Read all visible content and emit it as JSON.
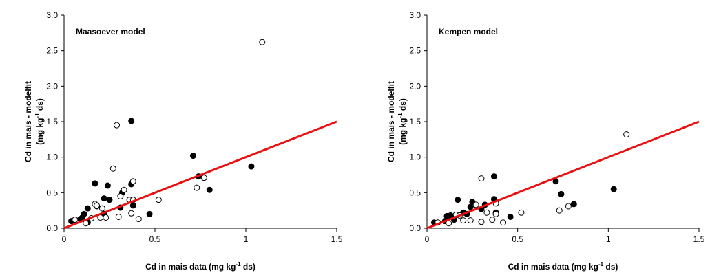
{
  "chart_data": [
    {
      "type": "scatter",
      "title": "Maasoever model",
      "xlabel": [
        "Cd in mais data (mg kg",
        "-1",
        " ds)"
      ],
      "ylabel": {
        "line1": "Cd in mais - modelfit",
        "line2": [
          "(mg kg",
          "-1",
          " ds)"
        ]
      },
      "xlim": [
        0,
        1.5
      ],
      "xticks": [
        0,
        0.5,
        1,
        1.5
      ],
      "ylim": [
        0,
        3
      ],
      "yticks": [
        {
          "value": 0,
          "label": "0.0"
        },
        0.5,
        {
          "value": 1,
          "label": "1.0"
        },
        1.5,
        {
          "value": 2,
          "label": "2.0"
        },
        2.5,
        {
          "value": 3,
          "label": "3.0"
        }
      ],
      "series": [
        {
          "fill": "#000000",
          "stroke": "#000000",
          "x": [
            0.04,
            0.1,
            0.11,
            0.13,
            0.13,
            0.17,
            0.18,
            0.22,
            0.24,
            0.25,
            0.31,
            0.32,
            0.37,
            0.37,
            0.38,
            0.47,
            0.71,
            0.74,
            0.8,
            1.03,
            0.22,
            0.09
          ],
          "values": [
            0.1,
            0.15,
            0.2,
            0.28,
            0.08,
            0.63,
            0.31,
            0.42,
            0.6,
            0.4,
            0.29,
            0.5,
            1.51,
            0.62,
            0.32,
            0.2,
            1.02,
            0.73,
            0.54,
            0.87,
            0.2,
            0.13
          ]
        },
        {
          "fill": "#ffffff",
          "stroke": "#000000",
          "x": [
            0.06,
            0.12,
            0.17,
            0.18,
            0.2,
            0.21,
            0.23,
            0.27,
            0.29,
            0.3,
            0.33,
            0.31,
            0.36,
            0.37,
            0.38,
            0.38,
            0.41,
            0.52,
            0.73,
            0.77,
            1.09,
            0.15
          ],
          "values": [
            0.12,
            0.07,
            0.34,
            0.32,
            0.15,
            0.28,
            0.15,
            0.84,
            1.45,
            0.16,
            0.54,
            0.45,
            0.4,
            0.21,
            0.4,
            0.66,
            0.13,
            0.4,
            0.57,
            0.71,
            2.62,
            0.14
          ]
        }
      ],
      "line": {
        "x": [
          0,
          1.5
        ],
        "y": [
          0,
          1.5
        ],
        "color": "#e81010"
      }
    },
    {
      "type": "scatter",
      "title": "Kempen model",
      "xlabel": [
        "Cd in mais data (mg kg",
        "-1",
        " ds)"
      ],
      "ylabel": {
        "line1": "Cd in mais - modelfit",
        "line2": [
          "(mg kg",
          "-1",
          " ds)"
        ]
      },
      "xlim": [
        0,
        1.5
      ],
      "xticks": [
        0,
        0.5,
        1,
        1.5
      ],
      "ylim": [
        0,
        3
      ],
      "yticks": [
        {
          "value": 0,
          "label": "0.0"
        },
        0.5,
        {
          "value": 1,
          "label": "1.0"
        },
        1.5,
        {
          "value": 2,
          "label": "2.0"
        },
        2.5,
        {
          "value": 3,
          "label": "3.0"
        }
      ],
      "series": [
        {
          "fill": "#000000",
          "stroke": "#000000",
          "x": [
            0.04,
            0.1,
            0.11,
            0.13,
            0.17,
            0.2,
            0.24,
            0.25,
            0.3,
            0.32,
            0.37,
            0.37,
            0.38,
            0.46,
            0.71,
            0.74,
            0.81,
            1.03,
            0.22,
            0.15
          ],
          "values": [
            0.08,
            0.1,
            0.17,
            0.18,
            0.4,
            0.22,
            0.3,
            0.37,
            0.27,
            0.33,
            0.73,
            0.41,
            0.22,
            0.16,
            0.66,
            0.48,
            0.34,
            0.55,
            0.2,
            0.12
          ]
        },
        {
          "fill": "#ffffff",
          "stroke": "#000000",
          "x": [
            0.06,
            0.12,
            0.16,
            0.18,
            0.2,
            0.24,
            0.27,
            0.3,
            0.3,
            0.33,
            0.36,
            0.38,
            0.38,
            0.42,
            0.52,
            0.73,
            0.78,
            1.1
          ],
          "values": [
            0.08,
            0.07,
            0.19,
            0.18,
            0.11,
            0.11,
            0.33,
            0.7,
            0.09,
            0.22,
            0.12,
            0.35,
            0.2,
            0.08,
            0.22,
            0.25,
            0.31,
            1.32
          ]
        }
      ],
      "line": {
        "x": [
          0,
          1.5
        ],
        "y": [
          0,
          1.5
        ],
        "color": "#e81010"
      }
    }
  ]
}
